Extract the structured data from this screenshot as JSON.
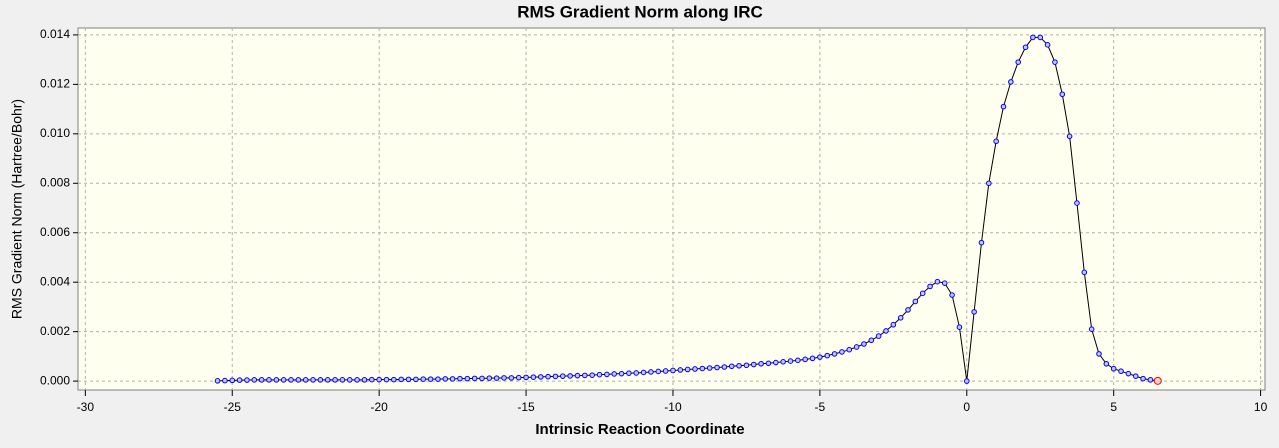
{
  "chart_data": {
    "type": "line",
    "title": "RMS Gradient Norm along IRC",
    "x_label": "Intrinsic Reaction Coordinate",
    "y_label": "RMS Gradient Norm (Hartree/Bohr)",
    "xlim": [
      -30.25,
      10.15
    ],
    "ylim": [
      -0.00036,
      0.01428
    ],
    "xticks": [
      -30,
      -25,
      -20,
      -15,
      -10,
      -5,
      0,
      5,
      10
    ],
    "yticks": [
      {
        "value": 0,
        "label": "0.000"
      },
      {
        "value": 0.002,
        "label": "0.002"
      },
      {
        "value": 0.004,
        "label": "0.004"
      },
      {
        "value": 0.006,
        "label": "0.006"
      },
      {
        "value": 0.008,
        "label": "0.008"
      },
      {
        "value": 0.01,
        "label": "0.010"
      },
      {
        "value": 0.012,
        "label": "0.012"
      },
      {
        "value": 0.014,
        "label": "0.014"
      }
    ],
    "grid": true,
    "x": [
      -25.5,
      -25.25,
      -25,
      -24.75,
      -24.5,
      -24.25,
      -24,
      -23.75,
      -23.5,
      -23.25,
      -23,
      -22.75,
      -22.5,
      -22.25,
      -22,
      -21.75,
      -21.5,
      -21.25,
      -21,
      -20.75,
      -20.5,
      -20.25,
      -20,
      -19.75,
      -19.5,
      -19.25,
      -19,
      -18.75,
      -18.5,
      -18.25,
      -18,
      -17.75,
      -17.5,
      -17.25,
      -17,
      -16.75,
      -16.5,
      -16.25,
      -16,
      -15.75,
      -15.5,
      -15.25,
      -15,
      -14.75,
      -14.5,
      -14.25,
      -14,
      -13.75,
      -13.5,
      -13.25,
      -13,
      -12.75,
      -12.5,
      -12.25,
      -12,
      -11.75,
      -11.5,
      -11.25,
      -11,
      -10.75,
      -10.5,
      -10.25,
      -10,
      -9.75,
      -9.5,
      -9.25,
      -9,
      -8.75,
      -8.5,
      -8.25,
      -8,
      -7.75,
      -7.5,
      -7.25,
      -7,
      -6.75,
      -6.5,
      -6.25,
      -6,
      -5.75,
      -5.5,
      -5.25,
      -5,
      -4.75,
      -4.5,
      -4.25,
      -4,
      -3.75,
      -3.5,
      -3.25,
      -3,
      -2.75,
      -2.5,
      -2.25,
      -2,
      -1.75,
      -1.5,
      -1.25,
      -1,
      -0.75,
      -0.5,
      -0.25,
      0,
      0.25,
      0.5,
      0.75,
      1,
      1.25,
      1.5,
      1.75,
      2,
      2.25,
      2.5,
      2.75,
      3,
      3.25,
      3.5,
      3.75,
      4,
      4.25,
      4.5,
      4.75,
      5,
      5.25,
      5.5,
      5.75,
      6,
      6.25,
      6.5
    ],
    "series": [
      {
        "color": "#0000ff",
        "values": [
          1e-05,
          2e-05,
          3e-05,
          4e-05,
          4e-05,
          5e-05,
          5e-05,
          5e-05,
          5e-05,
          5e-05,
          5e-05,
          5e-05,
          5e-05,
          5e-05,
          5e-05,
          5e-05,
          5e-05,
          5e-05,
          5e-05,
          5e-05,
          5e-05,
          6e-05,
          6e-05,
          6e-05,
          6e-05,
          7e-05,
          7e-05,
          7e-05,
          8e-05,
          8e-05,
          8e-05,
          9e-05,
          9e-05,
          0.0001,
          0.0001,
          0.00011,
          0.00011,
          0.00012,
          0.00012,
          0.00013,
          0.00013,
          0.00014,
          0.00015,
          0.00016,
          0.00017,
          0.00018,
          0.00019,
          0.0002,
          0.00021,
          0.00022,
          0.00023,
          0.00024,
          0.00026,
          0.00027,
          0.00029,
          0.0003,
          0.00032,
          0.00033,
          0.00035,
          0.00037,
          0.00039,
          0.00041,
          0.00043,
          0.00045,
          0.00047,
          0.00049,
          0.00051,
          0.00053,
          0.00055,
          0.00057,
          0.0006,
          0.00062,
          0.00064,
          0.00067,
          0.0007,
          0.00072,
          0.00075,
          0.00078,
          0.00081,
          0.00084,
          0.00088,
          0.00092,
          0.00097,
          0.00103,
          0.0011,
          0.00118,
          0.00127,
          0.00138,
          0.0015,
          0.00165,
          0.00182,
          0.00203,
          0.00228,
          0.00256,
          0.00288,
          0.00322,
          0.00355,
          0.00383,
          0.00402,
          0.00396,
          0.00348,
          0.00218,
          0,
          0.0028,
          0.0056,
          0.008,
          0.0097,
          0.0111,
          0.0121,
          0.0129,
          0.0135,
          0.0139,
          0.0139,
          0.0136,
          0.0129,
          0.0116,
          0.0099,
          0.0072,
          0.0044,
          0.0021,
          0.0011,
          0.0007,
          0.0005,
          0.0004,
          0.0003,
          0.0002,
          0.0001,
          5e-05,
          1e-05
        ]
      }
    ]
  }
}
